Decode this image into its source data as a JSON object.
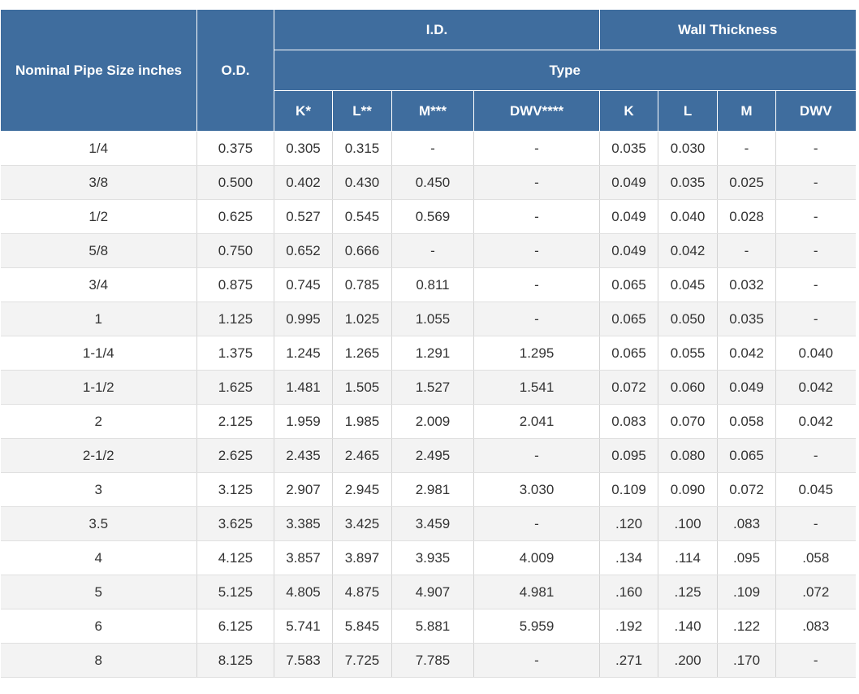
{
  "header": {
    "nominal": "Nominal Pipe Size inches",
    "od": "O.D.",
    "id_group": "I.D.",
    "wall_group": "Wall Thickness",
    "type": "Type",
    "columns": [
      "K*",
      "L**",
      "M***",
      "DWV****",
      "K",
      "L",
      "M",
      "DWV"
    ]
  },
  "rows": [
    [
      "1/4",
      "0.375",
      "0.305",
      "0.315",
      "-",
      "-",
      "0.035",
      "0.030",
      "-",
      "-"
    ],
    [
      "3/8",
      "0.500",
      "0.402",
      "0.430",
      "0.450",
      "-",
      "0.049",
      "0.035",
      "0.025",
      "-"
    ],
    [
      "1/2",
      "0.625",
      "0.527",
      "0.545",
      "0.569",
      "-",
      "0.049",
      "0.040",
      "0.028",
      "-"
    ],
    [
      "5/8",
      "0.750",
      "0.652",
      "0.666",
      "-",
      "-",
      "0.049",
      "0.042",
      "-",
      "-"
    ],
    [
      "3/4",
      "0.875",
      "0.745",
      "0.785",
      "0.811",
      "-",
      "0.065",
      "0.045",
      "0.032",
      "-"
    ],
    [
      "1",
      "1.125",
      "0.995",
      "1.025",
      "1.055",
      "-",
      "0.065",
      "0.050",
      "0.035",
      "-"
    ],
    [
      "1-1/4",
      "1.375",
      "1.245",
      "1.265",
      "1.291",
      "1.295",
      "0.065",
      "0.055",
      "0.042",
      "0.040"
    ],
    [
      "1-1/2",
      "1.625",
      "1.481",
      "1.505",
      "1.527",
      "1.541",
      "0.072",
      "0.060",
      "0.049",
      "0.042"
    ],
    [
      "2",
      "2.125",
      "1.959",
      "1.985",
      "2.009",
      "2.041",
      "0.083",
      "0.070",
      "0.058",
      "0.042"
    ],
    [
      "2-1/2",
      "2.625",
      "2.435",
      "2.465",
      "2.495",
      "-",
      "0.095",
      "0.080",
      "0.065",
      "-"
    ],
    [
      "3",
      "3.125",
      "2.907",
      "2.945",
      "2.981",
      "3.030",
      "0.109",
      "0.090",
      "0.072",
      "0.045"
    ],
    [
      "3.5",
      "3.625",
      "3.385",
      "3.425",
      "3.459",
      "-",
      ".120",
      ".100",
      ".083",
      "-"
    ],
    [
      "4",
      "4.125",
      "3.857",
      "3.897",
      "3.935",
      "4.009",
      ".134",
      ".114",
      ".095",
      ".058"
    ],
    [
      "5",
      "5.125",
      "4.805",
      "4.875",
      "4.907",
      "4.981",
      ".160",
      ".125",
      ".109",
      ".072"
    ],
    [
      "6",
      "6.125",
      "5.741",
      "5.845",
      "5.881",
      "5.959",
      ".192",
      ".140",
      ".122",
      ".083"
    ],
    [
      "8",
      "8.125",
      "7.583",
      "7.725",
      "7.785",
      "-",
      ".271",
      ".200",
      ".170",
      "-"
    ]
  ]
}
